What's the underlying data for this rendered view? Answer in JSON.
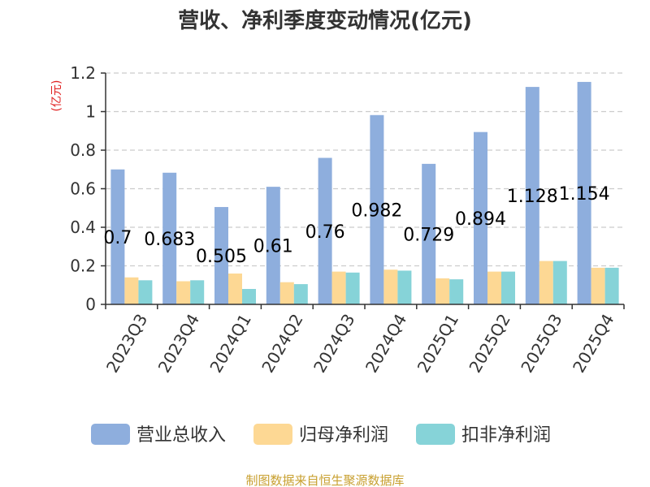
{
  "chart_data": {
    "type": "bar",
    "title": "营收、净利季度变动情况(亿元)",
    "ylabel": "(亿元)",
    "xlabel": "",
    "ylim": [
      0,
      1.2
    ],
    "yticks": [
      "0",
      "0.2",
      "0.4",
      "0.6",
      "0.8",
      "1",
      "1.2"
    ],
    "categories": [
      "2023Q3",
      "2023Q4",
      "2024Q1",
      "2024Q2",
      "2024Q3",
      "2024Q4",
      "2025Q1",
      "2025Q2",
      "2025Q3",
      "2025Q4"
    ],
    "series": [
      {
        "name": "营业总收入",
        "color": "#8eaedd",
        "values": [
          0.7,
          0.683,
          0.505,
          0.61,
          0.76,
          0.982,
          0.729,
          0.894,
          1.128,
          1.154
        ],
        "labels": [
          "0.7",
          "0.683",
          "0.505",
          "0.61",
          "0.76",
          "0.982",
          "0.729",
          "0.894",
          "1.128",
          "1.154"
        ]
      },
      {
        "name": "归母净利润",
        "color": "#fdd894",
        "values": [
          0.14,
          0.12,
          0.16,
          0.115,
          0.17,
          0.18,
          0.135,
          0.17,
          0.225,
          0.19
        ]
      },
      {
        "name": "扣非净利润",
        "color": "#86d3d8",
        "values": [
          0.125,
          0.125,
          0.08,
          0.105,
          0.165,
          0.175,
          0.13,
          0.17,
          0.225,
          0.19
        ]
      }
    ],
    "grid": true,
    "legend": "bottom",
    "source": "制图数据来自恒生聚源数据库"
  }
}
